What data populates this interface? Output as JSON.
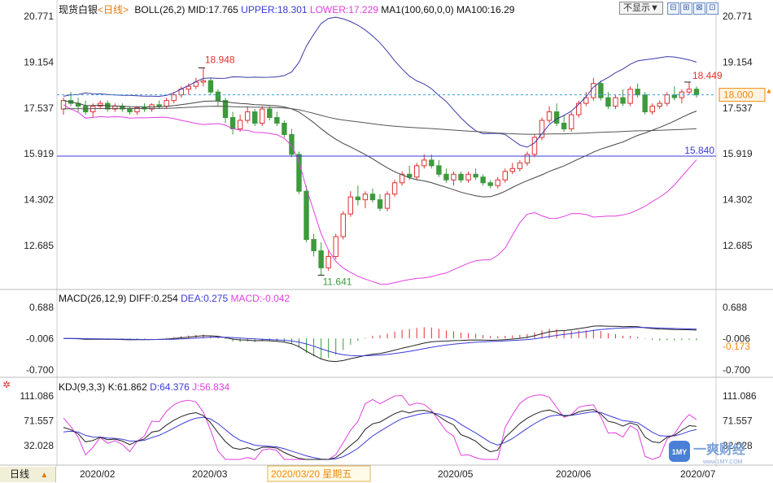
{
  "title": "现货白银",
  "period": "<日线>",
  "period_button": "日线",
  "period_arrow": "▲",
  "hide_dropdown": "不显示▼",
  "window_buttons": [
    "⊟",
    "⊞",
    "⊠",
    "⊡"
  ],
  "price_panel": {
    "boll_label": "BOLL(26,2)",
    "mid": "MID:17.765",
    "upper": "UPPER:18.301",
    "lower": "LOWER:17.229",
    "ma_label": "MA1(100,60,0,0)",
    "ma_value": "MA100:16.29",
    "y_ticks": [
      "20.771",
      "19.154",
      "17.537",
      "15.919",
      "14.302",
      "12.685"
    ],
    "current_price_tag": "18.000",
    "hline_label": "15.840",
    "high_label_left": "18.948",
    "high_label_right": "18.449",
    "low_label": "11.641"
  },
  "macd_panel": {
    "label": "MACD(26,12,9)",
    "diff": "DIFF:0.254",
    "dea": "DEA:0.275",
    "macd": "MACD:-0.042",
    "y_ticks": [
      "0.688",
      "-0.006",
      "-0.700"
    ],
    "right_tag": "-0.173"
  },
  "kdj_panel": {
    "label": "KDJ(9,3,3)",
    "k": "K:61.862",
    "d": "D:64.376",
    "j": "J:56.834",
    "y_ticks": [
      "111.086",
      "71.557",
      "32.028"
    ]
  },
  "x_axis": {
    "labels": [
      "2020/02",
      "2020/03",
      "2020/03/20 星期五",
      "2020/05",
      "2020/06",
      "2020/07"
    ],
    "highlight": "2020/03/20 星期五"
  },
  "logo": {
    "text": "一爽财经",
    "sub": "www.1MY.COM",
    "badge": "1MY"
  },
  "colors": {
    "up": "#e03030",
    "down": "#3d9a3d",
    "boll_band": "#3a3aa8",
    "boll_lower": "#e040e0",
    "mid": "#444444",
    "ma100": "#555555",
    "dashed": "#3aa0d8",
    "hline": "#3a3ad8",
    "diff": "#222222",
    "dea": "#3a3ad8",
    "k": "#222222",
    "d": "#3a3ad8",
    "j": "#e040e0",
    "tag_orange": "#f08a10"
  },
  "chart_data": {
    "type": "candlestick",
    "instrument": "现货白银",
    "price_axis_ticks": [
      20.771,
      19.154,
      17.537,
      15.919,
      14.302,
      12.685
    ],
    "annotations": [
      {
        "label": "18.948",
        "type": "high"
      },
      {
        "label": "11.641",
        "type": "low"
      },
      {
        "label": "18.449",
        "type": "high"
      },
      {
        "label": "15.840",
        "type": "horizontal-line"
      }
    ],
    "candles": [
      [
        17.5,
        17.9,
        17.3,
        17.8
      ],
      [
        17.8,
        18.1,
        17.6,
        17.7
      ],
      [
        17.7,
        17.9,
        17.4,
        17.6
      ],
      [
        17.6,
        17.8,
        17.3,
        17.4
      ],
      [
        17.4,
        17.7,
        17.2,
        17.6
      ],
      [
        17.6,
        17.8,
        17.5,
        17.7
      ],
      [
        17.7,
        17.8,
        17.4,
        17.5
      ],
      [
        17.5,
        17.7,
        17.4,
        17.6
      ],
      [
        17.6,
        17.7,
        17.4,
        17.5
      ],
      [
        17.5,
        17.6,
        17.3,
        17.4
      ],
      [
        17.4,
        17.6,
        17.3,
        17.55
      ],
      [
        17.55,
        17.7,
        17.4,
        17.5
      ],
      [
        17.5,
        17.7,
        17.4,
        17.65
      ],
      [
        17.65,
        17.8,
        17.5,
        17.6
      ],
      [
        17.6,
        17.9,
        17.5,
        17.8
      ],
      [
        17.8,
        18.1,
        17.7,
        18.0
      ],
      [
        18.0,
        18.3,
        17.9,
        18.2
      ],
      [
        18.2,
        18.4,
        18.0,
        18.3
      ],
      [
        18.3,
        18.6,
        18.2,
        18.45
      ],
      [
        18.45,
        18.95,
        18.3,
        18.5
      ],
      [
        18.5,
        18.6,
        18.0,
        18.1
      ],
      [
        18.1,
        18.2,
        17.6,
        17.8
      ],
      [
        17.8,
        17.9,
        17.0,
        17.2
      ],
      [
        17.2,
        17.4,
        16.6,
        16.8
      ],
      [
        16.8,
        17.3,
        16.7,
        17.1
      ],
      [
        17.1,
        17.6,
        17.0,
        17.4
      ],
      [
        17.4,
        17.5,
        16.9,
        17.0
      ],
      [
        17.0,
        17.6,
        16.9,
        17.5
      ],
      [
        17.5,
        17.6,
        17.1,
        17.2
      ],
      [
        17.2,
        17.4,
        16.9,
        17.0
      ],
      [
        17.0,
        17.1,
        16.5,
        16.6
      ],
      [
        16.6,
        16.8,
        15.8,
        15.9
      ],
      [
        15.9,
        16.0,
        14.5,
        14.6
      ],
      [
        14.6,
        14.8,
        12.8,
        12.9
      ],
      [
        12.9,
        13.1,
        12.3,
        12.5
      ],
      [
        12.5,
        12.8,
        11.64,
        11.9
      ],
      [
        11.9,
        12.5,
        11.8,
        12.3
      ],
      [
        12.3,
        13.1,
        12.2,
        13.0
      ],
      [
        13.0,
        13.9,
        12.9,
        13.8
      ],
      [
        13.8,
        14.6,
        13.7,
        14.4
      ],
      [
        14.4,
        14.8,
        14.1,
        14.3
      ],
      [
        14.3,
        14.6,
        14.0,
        14.5
      ],
      [
        14.5,
        14.7,
        14.2,
        14.3
      ],
      [
        14.3,
        14.5,
        13.9,
        14.0
      ],
      [
        14.0,
        14.6,
        13.9,
        14.5
      ],
      [
        14.5,
        15.0,
        14.4,
        14.9
      ],
      [
        14.9,
        15.3,
        14.8,
        15.2
      ],
      [
        15.2,
        15.5,
        15.0,
        15.1
      ],
      [
        15.1,
        15.6,
        15.0,
        15.5
      ],
      [
        15.5,
        15.9,
        15.4,
        15.7
      ],
      [
        15.7,
        15.9,
        15.4,
        15.5
      ],
      [
        15.5,
        15.7,
        15.1,
        15.2
      ],
      [
        15.2,
        15.4,
        14.9,
        15.0
      ],
      [
        15.0,
        15.3,
        14.8,
        15.2
      ],
      [
        15.2,
        15.3,
        14.9,
        15.0
      ],
      [
        15.0,
        15.3,
        14.9,
        15.2
      ],
      [
        15.2,
        15.4,
        15.0,
        15.1
      ],
      [
        15.1,
        15.2,
        14.8,
        14.9
      ],
      [
        14.9,
        15.0,
        14.7,
        14.8
      ],
      [
        14.8,
        15.1,
        14.7,
        15.0
      ],
      [
        15.0,
        15.4,
        14.9,
        15.3
      ],
      [
        15.3,
        15.6,
        15.2,
        15.4
      ],
      [
        15.4,
        15.7,
        15.3,
        15.6
      ],
      [
        15.6,
        16.0,
        15.5,
        15.9
      ],
      [
        15.9,
        16.6,
        15.8,
        16.5
      ],
      [
        16.5,
        17.2,
        16.4,
        17.1
      ],
      [
        17.1,
        17.6,
        17.0,
        17.4
      ],
      [
        17.4,
        17.7,
        16.9,
        17.0
      ],
      [
        17.0,
        17.3,
        16.7,
        16.8
      ],
      [
        16.8,
        17.4,
        16.7,
        17.3
      ],
      [
        17.3,
        17.8,
        17.2,
        17.7
      ],
      [
        17.7,
        18.1,
        17.6,
        17.9
      ],
      [
        17.9,
        18.6,
        17.8,
        18.4
      ],
      [
        18.4,
        18.5,
        17.8,
        17.9
      ],
      [
        17.9,
        18.1,
        17.5,
        17.6
      ],
      [
        17.6,
        18.0,
        17.5,
        17.9
      ],
      [
        17.9,
        18.2,
        17.6,
        17.7
      ],
      [
        17.7,
        18.3,
        17.6,
        18.2
      ],
      [
        18.2,
        18.4,
        17.9,
        18.0
      ],
      [
        18.0,
        18.1,
        17.3,
        17.4
      ],
      [
        17.4,
        17.7,
        17.3,
        17.6
      ],
      [
        17.6,
        17.8,
        17.5,
        17.7
      ],
      [
        17.7,
        18.1,
        17.6,
        18.0
      ],
      [
        18.0,
        18.3,
        17.8,
        17.9
      ],
      [
        17.9,
        18.2,
        17.7,
        18.1
      ],
      [
        18.1,
        18.45,
        18.0,
        18.2
      ],
      [
        18.2,
        18.3,
        17.9,
        18.0
      ]
    ]
  }
}
